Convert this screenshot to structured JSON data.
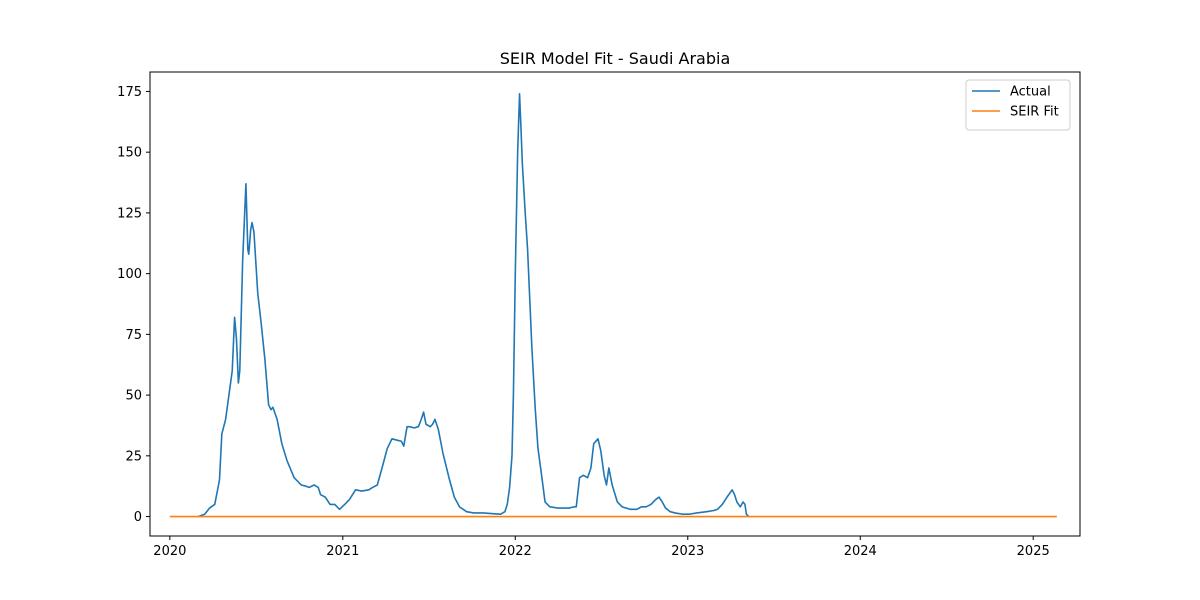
{
  "chart_data": {
    "type": "line",
    "title": "SEIR Model Fit - Saudi Arabia",
    "xlabel": "",
    "ylabel": "",
    "xlim": [
      "2019-11-20",
      "2025-04-10"
    ],
    "ylim": [
      -8,
      183
    ],
    "x_ticks": [
      "2020-01-01",
      "2021-01-01",
      "2022-01-01",
      "2023-01-01",
      "2024-01-01",
      "2025-01-01"
    ],
    "x_tick_labels": [
      "2020",
      "2021",
      "2022",
      "2023",
      "2024",
      "2025"
    ],
    "y_ticks": [
      0,
      25,
      50,
      75,
      100,
      125,
      150,
      175
    ],
    "y_tick_labels": [
      "0",
      "25",
      "50",
      "75",
      "100",
      "125",
      "150",
      "175"
    ],
    "grid": false,
    "legend_position": "top-right",
    "series": [
      {
        "name": "Actual",
        "color": "#1f77b4",
        "points": [
          [
            "2020-03-01",
            0
          ],
          [
            "2020-03-15",
            1
          ],
          [
            "2020-03-25",
            3.5
          ],
          [
            "2020-04-05",
            5
          ],
          [
            "2020-04-15",
            15
          ],
          [
            "2020-04-20",
            34
          ],
          [
            "2020-04-28",
            40
          ],
          [
            "2020-05-05",
            50
          ],
          [
            "2020-05-12",
            60
          ],
          [
            "2020-05-17",
            82
          ],
          [
            "2020-05-21",
            73
          ],
          [
            "2020-05-25",
            55
          ],
          [
            "2020-05-28",
            60
          ],
          [
            "2020-06-03",
            105
          ],
          [
            "2020-06-10",
            137
          ],
          [
            "2020-06-14",
            110
          ],
          [
            "2020-06-16",
            108
          ],
          [
            "2020-06-20",
            118
          ],
          [
            "2020-06-23",
            121
          ],
          [
            "2020-06-27",
            117
          ],
          [
            "2020-07-05",
            92
          ],
          [
            "2020-07-12",
            80
          ],
          [
            "2020-07-20",
            65
          ],
          [
            "2020-07-28",
            46
          ],
          [
            "2020-08-02",
            44
          ],
          [
            "2020-08-06",
            45
          ],
          [
            "2020-08-15",
            40
          ],
          [
            "2020-08-25",
            30
          ],
          [
            "2020-09-05",
            23
          ],
          [
            "2020-09-20",
            16
          ],
          [
            "2020-10-05",
            13
          ],
          [
            "2020-10-15",
            12.5
          ],
          [
            "2020-10-22",
            12
          ],
          [
            "2020-11-01",
            13
          ],
          [
            "2020-11-10",
            12
          ],
          [
            "2020-11-15",
            9
          ],
          [
            "2020-11-25",
            8
          ],
          [
            "2020-12-05",
            5
          ],
          [
            "2020-12-15",
            5
          ],
          [
            "2020-12-25",
            3
          ],
          [
            "2021-01-05",
            5
          ],
          [
            "2021-01-15",
            7
          ],
          [
            "2021-01-28",
            11
          ],
          [
            "2021-02-10",
            10.5
          ],
          [
            "2021-02-25",
            11
          ],
          [
            "2021-03-05",
            12
          ],
          [
            "2021-03-15",
            13
          ],
          [
            "2021-03-25",
            20
          ],
          [
            "2021-04-05",
            28
          ],
          [
            "2021-04-15",
            32
          ],
          [
            "2021-04-25",
            31.5
          ],
          [
            "2021-05-05",
            31
          ],
          [
            "2021-05-10",
            29
          ],
          [
            "2021-05-17",
            37
          ],
          [
            "2021-05-22",
            37
          ],
          [
            "2021-06-01",
            36.5
          ],
          [
            "2021-06-10",
            37
          ],
          [
            "2021-06-16",
            40
          ],
          [
            "2021-06-21",
            43
          ],
          [
            "2021-06-26",
            38
          ],
          [
            "2021-07-05",
            37
          ],
          [
            "2021-07-10",
            38
          ],
          [
            "2021-07-15",
            40
          ],
          [
            "2021-07-22",
            36
          ],
          [
            "2021-08-01",
            26
          ],
          [
            "2021-08-15",
            15
          ],
          [
            "2021-08-25",
            8
          ],
          [
            "2021-09-05",
            4
          ],
          [
            "2021-09-20",
            2
          ],
          [
            "2021-10-05",
            1.5
          ],
          [
            "2021-10-25",
            1.5
          ],
          [
            "2021-11-15",
            1.2
          ],
          [
            "2021-12-01",
            1
          ],
          [
            "2021-12-10",
            2
          ],
          [
            "2021-12-15",
            5
          ],
          [
            "2021-12-20",
            12
          ],
          [
            "2021-12-25",
            25
          ],
          [
            "2021-12-28",
            50
          ],
          [
            "2022-01-01",
            100
          ],
          [
            "2022-01-06",
            150
          ],
          [
            "2022-01-10",
            174
          ],
          [
            "2022-01-13",
            160
          ],
          [
            "2022-01-16",
            145
          ],
          [
            "2022-01-22",
            125
          ],
          [
            "2022-01-27",
            110
          ],
          [
            "2022-02-05",
            70
          ],
          [
            "2022-02-12",
            45
          ],
          [
            "2022-02-18",
            28
          ],
          [
            "2022-02-25",
            18
          ],
          [
            "2022-03-05",
            6
          ],
          [
            "2022-03-15",
            4
          ],
          [
            "2022-04-01",
            3.5
          ],
          [
            "2022-04-15",
            3.5
          ],
          [
            "2022-04-25",
            3.5
          ],
          [
            "2022-05-05",
            4
          ],
          [
            "2022-05-10",
            4
          ],
          [
            "2022-05-17",
            16
          ],
          [
            "2022-05-25",
            17
          ],
          [
            "2022-06-03",
            16
          ],
          [
            "2022-06-10",
            20
          ],
          [
            "2022-06-16",
            30
          ],
          [
            "2022-06-25",
            32
          ],
          [
            "2022-07-01",
            27
          ],
          [
            "2022-07-08",
            17
          ],
          [
            "2022-07-13",
            13
          ],
          [
            "2022-07-18",
            20
          ],
          [
            "2022-07-25",
            13
          ],
          [
            "2022-08-05",
            6
          ],
          [
            "2022-08-15",
            4
          ],
          [
            "2022-09-01",
            3
          ],
          [
            "2022-09-15",
            3
          ],
          [
            "2022-09-25",
            4
          ],
          [
            "2022-10-05",
            4
          ],
          [
            "2022-10-15",
            5
          ],
          [
            "2022-10-25",
            7
          ],
          [
            "2022-11-01",
            8
          ],
          [
            "2022-11-08",
            6
          ],
          [
            "2022-11-15",
            3.5
          ],
          [
            "2022-11-25",
            2
          ],
          [
            "2022-12-05",
            1.5
          ],
          [
            "2022-12-20",
            1
          ],
          [
            "2023-01-05",
            1
          ],
          [
            "2023-01-20",
            1.5
          ],
          [
            "2023-02-10",
            2
          ],
          [
            "2023-02-25",
            2.5
          ],
          [
            "2023-03-05",
            3
          ],
          [
            "2023-03-15",
            5
          ],
          [
            "2023-03-25",
            8
          ],
          [
            "2023-04-05",
            11
          ],
          [
            "2023-04-10",
            9
          ],
          [
            "2023-04-15",
            6
          ],
          [
            "2023-04-22",
            4
          ],
          [
            "2023-04-28",
            6
          ],
          [
            "2023-05-02",
            5
          ],
          [
            "2023-05-05",
            1
          ],
          [
            "2023-05-10",
            0
          ]
        ]
      },
      {
        "name": "SEIR Fit",
        "color": "#ff7f0e",
        "points": [
          [
            "2020-01-01",
            0
          ],
          [
            "2025-02-20",
            0
          ]
        ]
      }
    ]
  }
}
